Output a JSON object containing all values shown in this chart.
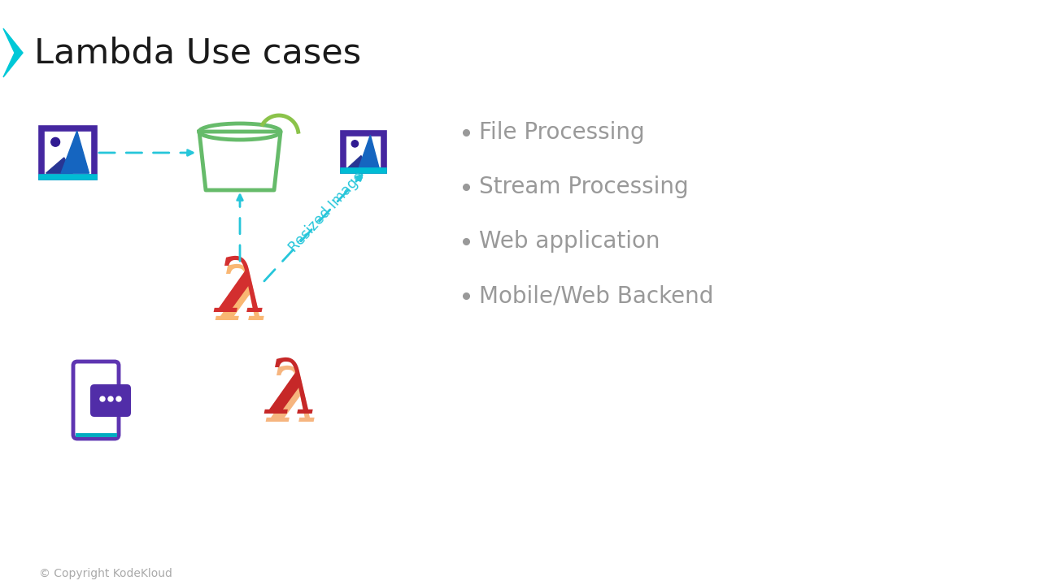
{
  "title": "Lambda Use cases",
  "title_color": "#1a1a1a",
  "title_fontsize": 31,
  "bg_color": "#ffffff",
  "chevron_color": "#00c8d7",
  "bullet_items": [
    "File Processing",
    "Stream Processing",
    "Web application",
    "Mobile/Web Backend"
  ],
  "bullet_color": "#999999",
  "bullet_fontsize": 20,
  "copyright_text": "© Copyright KodeKloud",
  "copyright_color": "#aaaaaa",
  "copyright_fontsize": 10,
  "cyan": "#26c6da",
  "green_bright": "#66bb6a",
  "green_lime": "#8bc34a",
  "lambda_red": "#d32f2f",
  "lambda_orange": "#f57c00",
  "lambda2_red": "#c62828",
  "lambda2_orange": "#ef6c00",
  "purple_dark": "#4527a0",
  "purple_mid": "#6a1b9a",
  "cyan_light": "#00bcd4",
  "phone_purple": "#5e35b1",
  "phone_blue": "#00acc1",
  "chat_purple": "#512da8",
  "img_border_purple": "#4527a0",
  "img_border_cyan": "#00bcd4",
  "img_mountain_dark": "#283593",
  "img_mountain_med": "#1565c0",
  "img_sun": "#311b92"
}
